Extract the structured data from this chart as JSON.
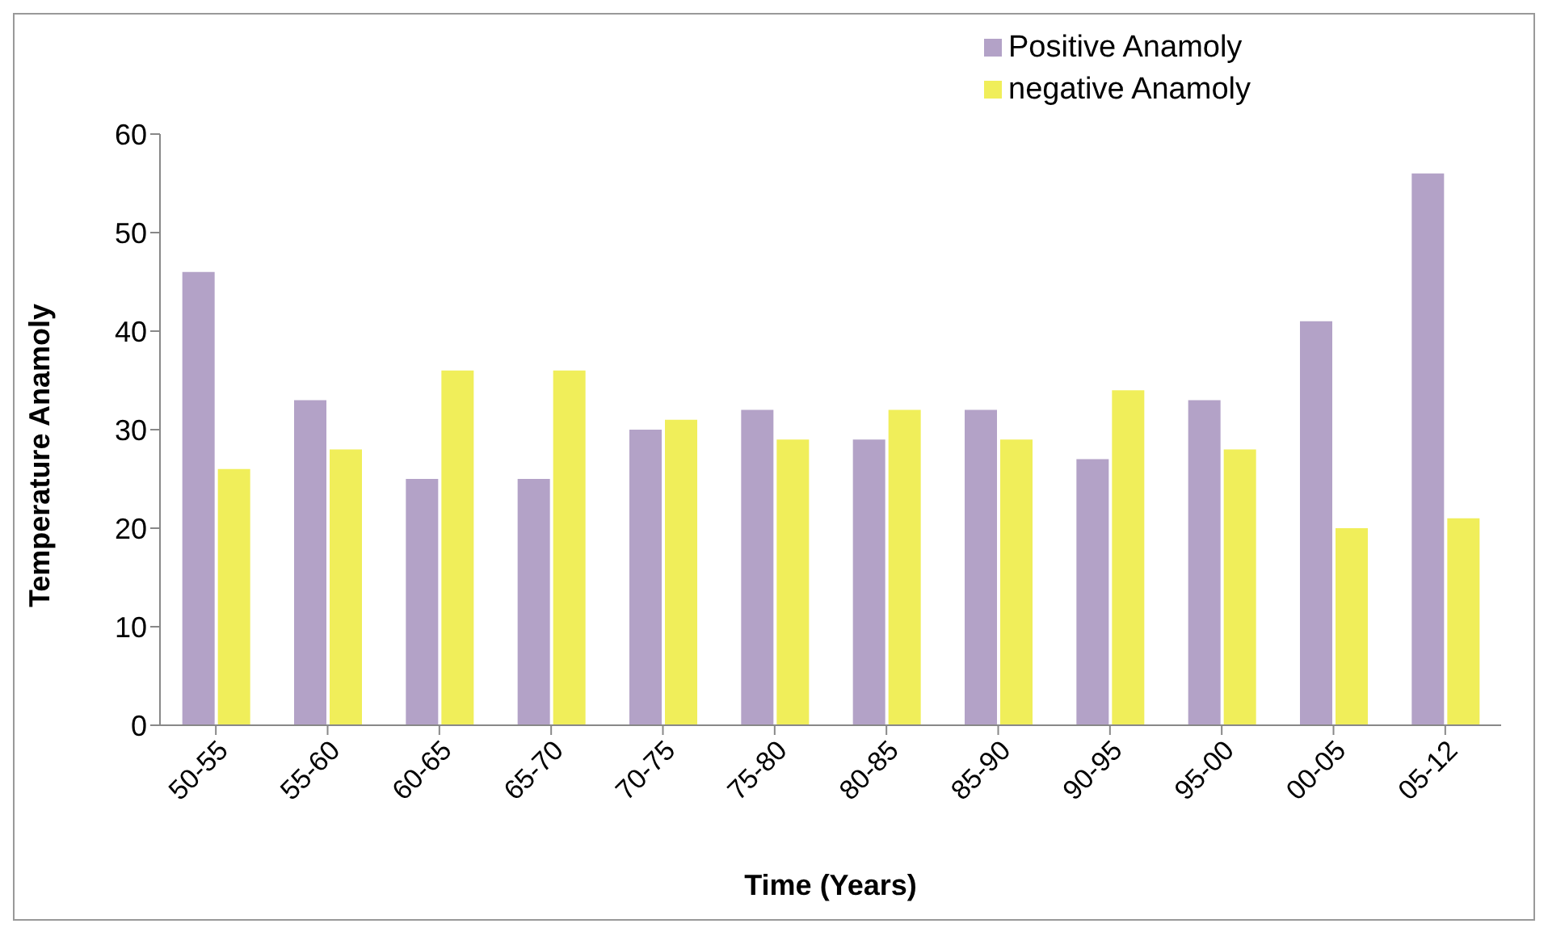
{
  "chart_data": {
    "type": "bar",
    "xlabel": "Time (Years)",
    "ylabel": "Temperature Anamoly",
    "categories": [
      "50-55",
      "55-60",
      "60-65",
      "65-70",
      "70-75",
      "75-80",
      "80-85",
      "85-90",
      "90-95",
      "95-00",
      "00-05",
      "05-12"
    ],
    "series": [
      {
        "name": "Positive Anamoly",
        "color": "#b3a2c7",
        "values": [
          46,
          33,
          25,
          25,
          30,
          32,
          29,
          32,
          27,
          33,
          41,
          56
        ]
      },
      {
        "name": "negative Anamoly",
        "color": "#f0ee5a",
        "values": [
          26,
          28,
          36,
          36,
          31,
          29,
          32,
          29,
          34,
          28,
          20,
          21
        ]
      }
    ],
    "ylim": [
      0,
      60
    ],
    "yticks": [
      0,
      10,
      20,
      30,
      40,
      50,
      60
    ],
    "grid": false,
    "legend": "top right"
  }
}
